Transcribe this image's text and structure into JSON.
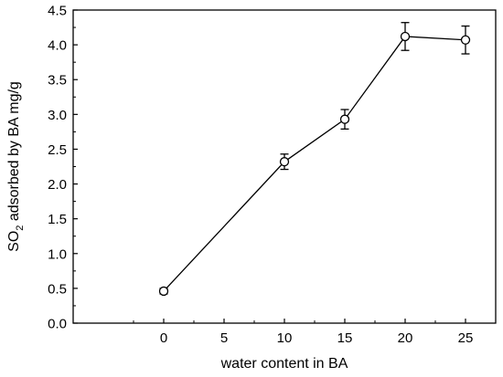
{
  "chart_data": {
    "type": "line",
    "xlabel": "water content in BA",
    "ylabel": {
      "prefix": "SO",
      "subscript": "2",
      "suffix": " adsorbed by BA mg/g"
    },
    "xlim": [
      -7.5,
      27.5
    ],
    "ylim": [
      0.0,
      4.5
    ],
    "xticks": [
      "0",
      "5",
      "10",
      "15",
      "20",
      "25"
    ],
    "yticks": [
      "0.0",
      "0.5",
      "1.0",
      "1.5",
      "2.0",
      "2.5",
      "3.0",
      "3.5",
      "4.0",
      "4.5"
    ],
    "grid": false,
    "legend": "none",
    "series": [
      {
        "x": [
          0,
          10,
          15,
          20,
          25
        ],
        "y": [
          0.46,
          2.32,
          2.93,
          4.12,
          4.07
        ],
        "yerr": [
          0.04,
          0.11,
          0.14,
          0.2,
          0.2
        ],
        "marker": "open-circle",
        "color": "#000000"
      }
    ]
  }
}
